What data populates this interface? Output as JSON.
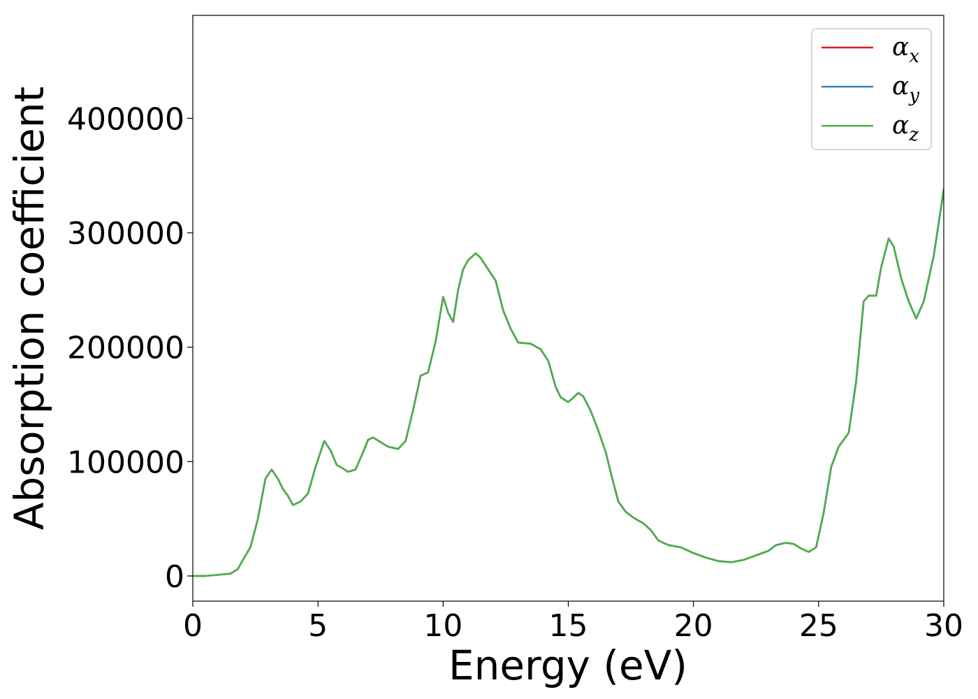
{
  "chart_data": {
    "type": "line",
    "xlabel": "Energy (eV)",
    "ylabel": "Absorption coefficient",
    "xlim": [
      0,
      30
    ],
    "ylim": [
      -22000,
      490000
    ],
    "xticks": [
      0,
      5,
      10,
      15,
      20,
      25,
      30
    ],
    "xtick_labels": [
      "0",
      "5",
      "10",
      "15",
      "20",
      "25",
      "30"
    ],
    "yticks": [
      0,
      100000,
      200000,
      300000,
      400000
    ],
    "ytick_labels": [
      "0",
      "100000",
      "200000",
      "300000",
      "400000"
    ],
    "grid": false,
    "legend": {
      "position": "top-right",
      "entries": [
        {
          "symbol": "α",
          "sub": "x",
          "color": "#e41a1c"
        },
        {
          "symbol": "α",
          "sub": "y",
          "color": "#377eb8"
        },
        {
          "symbol": "α",
          "sub": "z",
          "color": "#4daf4a"
        }
      ]
    },
    "x": [
      0,
      0.5,
      1.0,
      1.5,
      1.8,
      2.0,
      2.3,
      2.6,
      2.9,
      3.15,
      3.4,
      3.6,
      3.8,
      4.0,
      4.3,
      4.6,
      4.9,
      5.25,
      5.5,
      5.75,
      6.0,
      6.2,
      6.5,
      6.8,
      7.0,
      7.2,
      7.5,
      7.8,
      8.2,
      8.5,
      8.8,
      9.1,
      9.4,
      9.7,
      10.0,
      10.2,
      10.4,
      10.6,
      10.8,
      11.0,
      11.3,
      11.5,
      11.8,
      12.1,
      12.4,
      12.7,
      13.0,
      13.5,
      13.9,
      14.2,
      14.5,
      14.7,
      15.0,
      15.2,
      15.4,
      15.6,
      15.9,
      16.2,
      16.5,
      16.7,
      17.0,
      17.3,
      17.6,
      18.0,
      18.3,
      18.6,
      19.0,
      19.5,
      20.0,
      20.5,
      21.0,
      21.5,
      22.0,
      22.5,
      23.0,
      23.3,
      23.7,
      24.0,
      24.3,
      24.6,
      24.9,
      25.2,
      25.5,
      25.8,
      26.2,
      26.5,
      26.8,
      27.0,
      27.3,
      27.5,
      27.8,
      28.0,
      28.3,
      28.6,
      28.9,
      29.2,
      29.6,
      30.0
    ],
    "series": [
      {
        "name": "α_x",
        "color": "#e41a1c",
        "values": [
          0,
          0,
          1000,
          2000,
          6000,
          14000,
          25000,
          50000,
          85000,
          93000,
          85000,
          76000,
          70000,
          62000,
          65000,
          72000,
          95000,
          118000,
          110000,
          97000,
          94000,
          91000,
          93000,
          108000,
          119000,
          121000,
          117000,
          113000,
          111000,
          118000,
          145000,
          175000,
          178000,
          205000,
          244000,
          230000,
          222000,
          250000,
          268000,
          276000,
          282000,
          278000,
          268000,
          258000,
          232000,
          216000,
          204000,
          203000,
          198000,
          188000,
          165000,
          156000,
          152000,
          156000,
          160000,
          157000,
          144000,
          127000,
          108000,
          90000,
          65000,
          56000,
          51000,
          46000,
          40000,
          31000,
          27000,
          25000,
          20000,
          16000,
          13000,
          12000,
          14000,
          18000,
          22000,
          27000,
          29000,
          28000,
          24000,
          21000,
          25000,
          55000,
          95000,
          113000,
          125000,
          170000,
          240000,
          245000,
          245000,
          270000,
          295000,
          288000,
          260000,
          240000,
          225000,
          240000,
          280000,
          338000
        ]
      },
      {
        "name": "α_y",
        "color": "#377eb8",
        "values": [
          0,
          0,
          1000,
          2000,
          6000,
          14000,
          25000,
          50000,
          85000,
          93000,
          85000,
          76000,
          70000,
          62000,
          65000,
          72000,
          95000,
          118000,
          110000,
          97000,
          94000,
          91000,
          93000,
          108000,
          119000,
          121000,
          117000,
          113000,
          111000,
          118000,
          145000,
          175000,
          178000,
          205000,
          244000,
          230000,
          222000,
          250000,
          268000,
          276000,
          282000,
          278000,
          268000,
          258000,
          232000,
          216000,
          204000,
          203000,
          198000,
          188000,
          165000,
          156000,
          152000,
          156000,
          160000,
          157000,
          144000,
          127000,
          108000,
          90000,
          65000,
          56000,
          51000,
          46000,
          40000,
          31000,
          27000,
          25000,
          20000,
          16000,
          13000,
          12000,
          14000,
          18000,
          22000,
          27000,
          29000,
          28000,
          24000,
          21000,
          25000,
          55000,
          95000,
          113000,
          125000,
          170000,
          240000,
          245000,
          245000,
          270000,
          295000,
          288000,
          260000,
          240000,
          225000,
          240000,
          280000,
          338000
        ]
      },
      {
        "name": "α_z",
        "color": "#4daf4a",
        "values": [
          0,
          0,
          1000,
          2000,
          6000,
          14000,
          25000,
          50000,
          85000,
          93000,
          85000,
          76000,
          70000,
          62000,
          65000,
          72000,
          95000,
          118000,
          110000,
          97000,
          94000,
          91000,
          93000,
          108000,
          119000,
          121000,
          117000,
          113000,
          111000,
          118000,
          145000,
          175000,
          178000,
          205000,
          244000,
          230000,
          222000,
          250000,
          268000,
          276000,
          282000,
          278000,
          268000,
          258000,
          232000,
          216000,
          204000,
          203000,
          198000,
          188000,
          165000,
          156000,
          152000,
          156000,
          160000,
          157000,
          144000,
          127000,
          108000,
          90000,
          65000,
          56000,
          51000,
          46000,
          40000,
          31000,
          27000,
          25000,
          20000,
          16000,
          13000,
          12000,
          14000,
          18000,
          22000,
          27000,
          29000,
          28000,
          24000,
          21000,
          25000,
          55000,
          95000,
          113000,
          125000,
          170000,
          240000,
          245000,
          245000,
          270000,
          295000,
          288000,
          260000,
          240000,
          225000,
          240000,
          280000,
          338000
        ]
      }
    ]
  }
}
